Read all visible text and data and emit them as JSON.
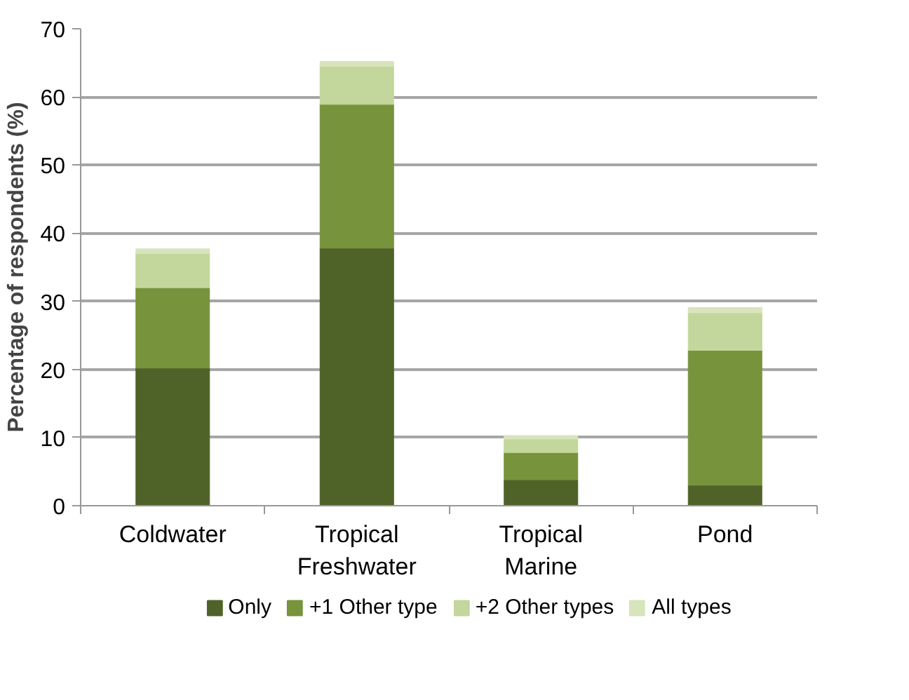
{
  "chart_data": {
    "type": "bar",
    "stacked": true,
    "ylabel": "Percentage of respondents (%)",
    "categories": [
      "Coldwater",
      "Tropical\nFreshwater",
      "Tropical\nMarine",
      "Pond"
    ],
    "series": [
      {
        "name": "Only",
        "color": "#4f6228",
        "values": [
          20.2,
          37.8,
          3.8,
          3.0
        ]
      },
      {
        "name": "+1 Other type",
        "color": "#77933c",
        "values": [
          11.8,
          21.1,
          4.0,
          19.8
        ]
      },
      {
        "name": "+2 Other types",
        "color": "#c3d69b",
        "values": [
          5.0,
          5.6,
          2.0,
          5.5
        ]
      },
      {
        "name": "All types",
        "color": "#d7e4bc",
        "values": [
          0.7,
          0.7,
          0.5,
          0.8
        ]
      }
    ],
    "ylim": [
      0,
      70
    ],
    "yticks": [
      0,
      10,
      20,
      30,
      40,
      50,
      60,
      70
    ],
    "grid": "y",
    "legend": "bottom"
  }
}
